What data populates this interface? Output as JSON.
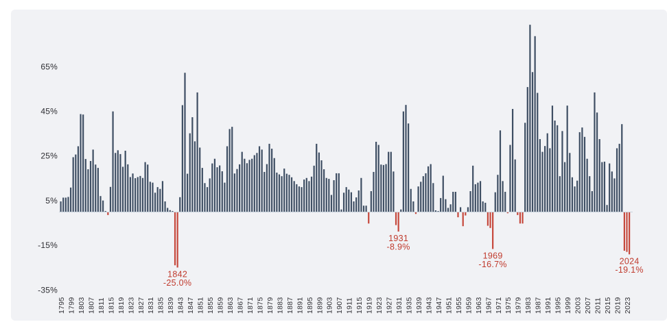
{
  "chart_data": {
    "type": "bar",
    "description": "Annual percentage returns by year, 1795-2024, positive years in dark slate, negative years in red",
    "unit": "%",
    "start_year": 1795,
    "end_year": 2024,
    "values": [
      4.6,
      6.3,
      6.3,
      6.6,
      10.8,
      24.4,
      25.6,
      29.3,
      43.7,
      43.5,
      23.6,
      19.0,
      22.7,
      27.8,
      21.1,
      19.6,
      7.0,
      5.0,
      0.3,
      -1.5,
      11.1,
      44.9,
      26.3,
      27.5,
      25.8,
      20.1,
      27.3,
      21.2,
      15.5,
      17.1,
      15.0,
      15.5,
      16.0,
      15.1,
      22.2,
      21.1,
      13.4,
      13.0,
      8.5,
      11.0,
      10.2,
      13.7,
      4.6,
      1.7,
      0.7,
      0.3,
      -24.0,
      -25.0,
      6.5,
      47.7,
      62.2,
      17.0,
      35.1,
      42.3,
      31.5,
      53.4,
      28.7,
      19.6,
      12.8,
      11.0,
      14.9,
      21.6,
      23.7,
      19.9,
      20.7,
      18.1,
      13.0,
      29.3,
      37.0,
      38.0,
      17.1,
      19.1,
      21.2,
      26.8,
      23.7,
      21.7,
      23.2,
      23.7,
      25.3,
      26.3,
      29.3,
      27.8,
      17.8,
      21.3,
      30.4,
      28.2,
      24.0,
      17.5,
      16.7,
      15.9,
      19.3,
      17.0,
      16.5,
      15.4,
      13.7,
      12.3,
      11.3,
      11.0,
      14.4,
      15.1,
      13.7,
      15.7,
      20.6,
      30.4,
      26.5,
      23.0,
      19.0,
      15.1,
      14.7,
      7.5,
      14.1,
      17.2,
      17.2,
      1.0,
      8.5,
      11.0,
      9.9,
      8.7,
      4.6,
      6.4,
      9.5,
      15.1,
      2.7,
      2.7,
      -5.3,
      9.2,
      17.8,
      31.3,
      29.9,
      21.1,
      20.9,
      21.3,
      26.8,
      26.8,
      18.0,
      -6.0,
      -8.9,
      1.0,
      44.9,
      47.8,
      39.5,
      10.2,
      4.6,
      -1.0,
      11.3,
      13.4,
      15.9,
      17.2,
      20.3,
      21.3,
      12.8,
      0.6,
      0.3,
      6.1,
      16.1,
      5.6,
      1.7,
      3.3,
      8.9,
      8.9,
      -2.5,
      2.0,
      -6.5,
      -1.7,
      2.0,
      9.2,
      20.6,
      12.3,
      13.0,
      13.7,
      4.6,
      4.0,
      -6.3,
      -7.3,
      -16.7,
      8.7,
      16.5,
      36.4,
      13.7,
      8.9,
      -0.7,
      29.9,
      46.0,
      23.4,
      -1.5,
      -5.3,
      -5.3,
      39.8,
      55.8,
      83.7,
      62.5,
      78.6,
      53.2,
      32.5,
      26.8,
      29.4,
      35.1,
      28.4,
      47.5,
      40.8,
      38.7,
      15.9,
      36.1,
      22.2,
      47.5,
      26.3,
      15.4,
      11.3,
      13.9,
      35.6,
      37.7,
      33.5,
      23.7,
      15.9,
      9.2,
      53.4,
      44.4,
      32.5,
      22.2,
      22.4,
      3.0,
      21.6,
      18.0,
      14.9,
      28.4,
      30.4,
      39.2,
      -17.5,
      -18.0,
      -19.1
    ],
    "y_axis": {
      "ticks": [
        {
          "label": "65%",
          "value": 65
        },
        {
          "label": "45%",
          "value": 45
        },
        {
          "label": "25%",
          "value": 25
        },
        {
          "label": "5%",
          "value": 5
        },
        {
          "label": "-15%",
          "value": -15
        },
        {
          "label": "-35%",
          "value": -35
        }
      ]
    },
    "x_axis": {
      "tick_interval": 4,
      "ticks": [
        "1795",
        "1799",
        "1803",
        "1807",
        "1811",
        "1815",
        "1819",
        "1823",
        "1827",
        "1831",
        "1835",
        "1839",
        "1843",
        "1847",
        "1851",
        "1855",
        "1859",
        "1863",
        "1867",
        "1871",
        "1875",
        "1879",
        "1883",
        "1887",
        "1891",
        "1895",
        "1899",
        "1903",
        "1907",
        "1911",
        "1915",
        "1919",
        "1923",
        "1927",
        "1931",
        "1935",
        "1939",
        "1943",
        "1947",
        "1951",
        "1955",
        "1959",
        "1963",
        "1967",
        "1971",
        "1975",
        "1979",
        "1983",
        "1987",
        "1991",
        "1995",
        "1999",
        "2003",
        "2007",
        "2011",
        "2015",
        "2019",
        "2023"
      ]
    },
    "annotations": [
      {
        "year": 1842,
        "year_label": "1842",
        "value_label": "-25.0%"
      },
      {
        "year": 1931,
        "year_label": "1931",
        "value_label": "-8.9%"
      },
      {
        "year": 1969,
        "year_label": "1969",
        "value_label": "-16.7%"
      },
      {
        "year": 2024,
        "year_label": "2024",
        "value_label": "-19.1%"
      }
    ],
    "legend": "none",
    "grid": "off",
    "colors": {
      "positive_bar": "#3e4e63",
      "negative_bar": "#c6483c",
      "annotation_text": "#c03a2d",
      "axis_text": "#2e2e33",
      "baseline": "#c9d3dd",
      "card_background": "#f1f2f5",
      "page_background": "#ffffff"
    }
  }
}
